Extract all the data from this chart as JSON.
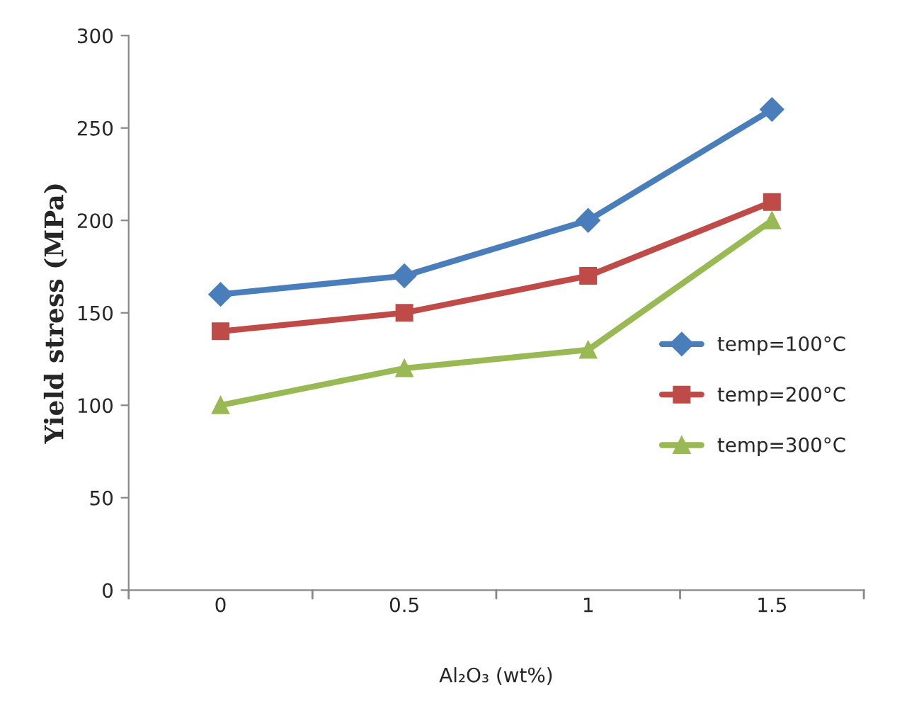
{
  "chart_data": {
    "type": "line",
    "xlabel": "Al₂O₃ (wt%)",
    "ylabel": "Yield stress (MPa)",
    "categories": [
      "0",
      "0.5",
      "1",
      "1.5"
    ],
    "series": [
      {
        "name": "temp=100°C",
        "color": "#4a7ebb",
        "marker": "diamond",
        "values": [
          160,
          170,
          200,
          260
        ]
      },
      {
        "name": "temp=200°C",
        "color": "#be4b48",
        "marker": "square",
        "values": [
          140,
          150,
          170,
          210
        ]
      },
      {
        "name": "temp=300°C",
        "color": "#98b954",
        "marker": "triangle",
        "values": [
          100,
          120,
          130,
          200
        ]
      }
    ],
    "ylim": [
      0,
      300
    ],
    "yticks": [
      0,
      50,
      100,
      150,
      200,
      250,
      300
    ],
    "grid": false,
    "legend": "right",
    "line_style": "solid"
  }
}
